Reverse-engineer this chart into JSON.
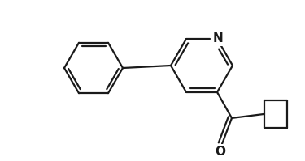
{
  "background_color": "#ffffff",
  "line_color": "#1a1a1a",
  "line_width": 1.6,
  "figsize": [
    3.75,
    1.99
  ],
  "dpi": 100,
  "atom_labels": {
    "N": {
      "fontsize": 11,
      "fontweight": "bold"
    },
    "O": {
      "fontsize": 11,
      "fontweight": "bold"
    }
  }
}
